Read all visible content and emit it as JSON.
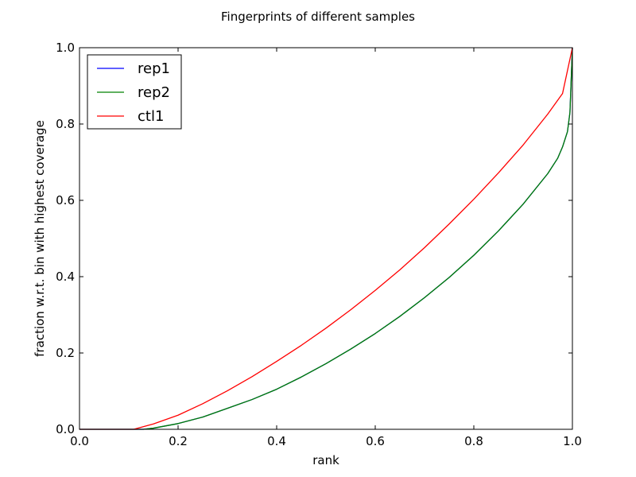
{
  "chart_data": {
    "type": "line",
    "title": "Fingerprints of different samples",
    "xlabel": "rank",
    "ylabel": "fraction w.r.t. bin with highest coverage",
    "xlim": [
      0.0,
      1.0
    ],
    "ylim": [
      0.0,
      1.0
    ],
    "xticks": [
      "0.0",
      "0.2",
      "0.4",
      "0.6",
      "0.8",
      "1.0"
    ],
    "yticks": [
      "0.0",
      "0.2",
      "0.4",
      "0.6",
      "0.8",
      "1.0"
    ],
    "grid": false,
    "legend_position": "top-left",
    "series": [
      {
        "name": "rep1",
        "color": "#0000ff",
        "x": [
          0.0,
          0.13,
          0.15,
          0.2,
          0.25,
          0.3,
          0.35,
          0.4,
          0.45,
          0.5,
          0.55,
          0.6,
          0.65,
          0.7,
          0.75,
          0.8,
          0.85,
          0.9,
          0.95,
          0.97,
          0.98,
          0.99,
          0.995,
          1.0
        ],
        "y": [
          0.0,
          0.0,
          0.003,
          0.015,
          0.032,
          0.055,
          0.078,
          0.105,
          0.137,
          0.172,
          0.21,
          0.251,
          0.296,
          0.345,
          0.398,
          0.456,
          0.52,
          0.59,
          0.67,
          0.71,
          0.74,
          0.78,
          0.83,
          1.0
        ]
      },
      {
        "name": "rep2",
        "color": "#008000",
        "x": [
          0.0,
          0.13,
          0.15,
          0.2,
          0.25,
          0.3,
          0.35,
          0.4,
          0.45,
          0.5,
          0.55,
          0.6,
          0.65,
          0.7,
          0.75,
          0.8,
          0.85,
          0.9,
          0.95,
          0.97,
          0.98,
          0.99,
          0.995,
          1.0
        ],
        "y": [
          0.0,
          0.0,
          0.003,
          0.015,
          0.032,
          0.055,
          0.078,
          0.105,
          0.137,
          0.172,
          0.21,
          0.251,
          0.296,
          0.345,
          0.398,
          0.456,
          0.52,
          0.59,
          0.67,
          0.71,
          0.74,
          0.78,
          0.83,
          1.0
        ]
      },
      {
        "name": "ctl1",
        "color": "#ff0000",
        "x": [
          0.0,
          0.11,
          0.15,
          0.2,
          0.25,
          0.3,
          0.35,
          0.4,
          0.45,
          0.5,
          0.55,
          0.6,
          0.65,
          0.7,
          0.75,
          0.8,
          0.85,
          0.9,
          0.95,
          0.98,
          1.0
        ],
        "y": [
          0.0,
          0.0,
          0.014,
          0.037,
          0.067,
          0.101,
          0.138,
          0.178,
          0.22,
          0.265,
          0.313,
          0.364,
          0.418,
          0.476,
          0.538,
          0.603,
          0.672,
          0.745,
          0.826,
          0.88,
          1.0
        ]
      }
    ]
  }
}
